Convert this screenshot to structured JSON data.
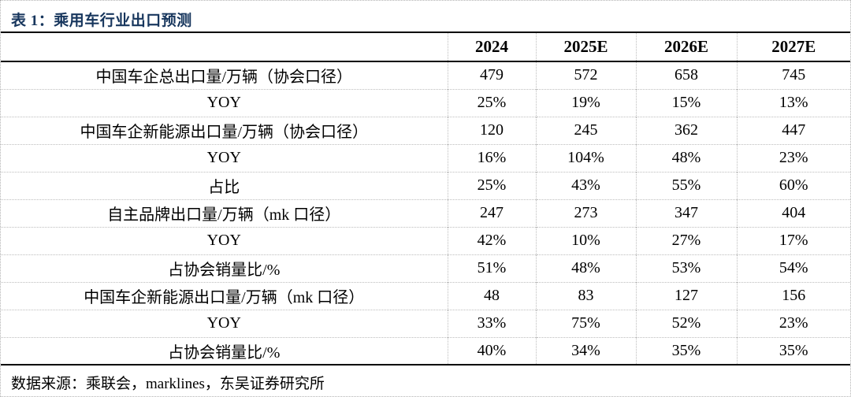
{
  "header": {
    "title": "表 1：乘用车行业出口预测"
  },
  "footer": {
    "source": "数据来源：乘联会，marklines，东吴证券研究所"
  },
  "colors": {
    "title_text": "#17365D",
    "body_text": "#000000",
    "solid_rule": "#000000",
    "dotted_grid": "#bdbdbd",
    "background": "#ffffff"
  },
  "chart_data": {
    "type": "table",
    "title": "表 1：乘用车行业出口预测",
    "columns": [
      "",
      "2024",
      "2025E",
      "2026E",
      "2027E"
    ],
    "rows": [
      {
        "label": "中国车企总出口量/万辆（协会口径）",
        "values": [
          "479",
          "572",
          "658",
          "745"
        ]
      },
      {
        "label": "YOY",
        "values": [
          "25%",
          "19%",
          "15%",
          "13%"
        ]
      },
      {
        "label": "中国车企新能源出口量/万辆（协会口径）",
        "values": [
          "120",
          "245",
          "362",
          "447"
        ]
      },
      {
        "label": "YOY",
        "values": [
          "16%",
          "104%",
          "48%",
          "23%"
        ]
      },
      {
        "label": "占比",
        "values": [
          "25%",
          "43%",
          "55%",
          "60%"
        ]
      },
      {
        "label": "自主品牌出口量/万辆（mk 口径）",
        "values": [
          "247",
          "273",
          "347",
          "404"
        ]
      },
      {
        "label": "YOY",
        "values": [
          "42%",
          "10%",
          "27%",
          "17%"
        ]
      },
      {
        "label": "占协会销量比/%",
        "values": [
          "51%",
          "48%",
          "53%",
          "54%"
        ]
      },
      {
        "label": "中国车企新能源出口量/万辆（mk 口径）",
        "values": [
          "48",
          "83",
          "127",
          "156"
        ]
      },
      {
        "label": "YOY",
        "values": [
          "33%",
          "75%",
          "52%",
          "23%"
        ]
      },
      {
        "label": "占协会销量比/%",
        "values": [
          "40%",
          "34%",
          "35%",
          "35%"
        ]
      }
    ],
    "source": "数据来源：乘联会，marklines，东吴证券研究所"
  }
}
